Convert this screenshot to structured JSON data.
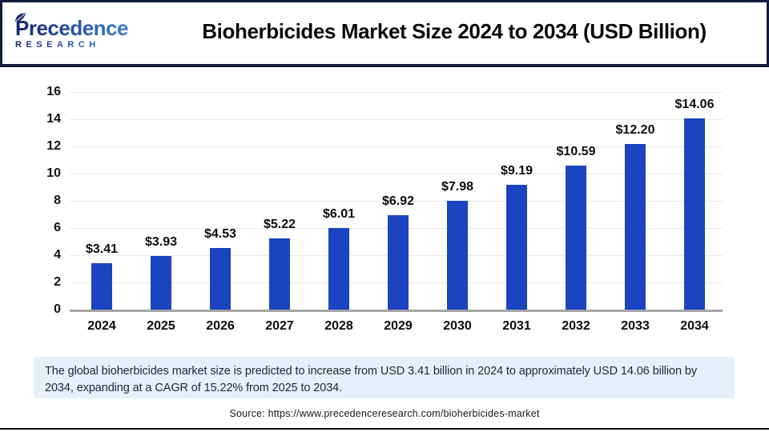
{
  "header": {
    "logo_name": "Precedence",
    "logo_subname": "RESEARCH",
    "title": "Bioherbicides Market Size 2024 to 2034 (USD Billion)"
  },
  "chart_data": {
    "type": "bar",
    "title": "Bioherbicides Market Size 2024 to 2034 (USD Billion)",
    "unit": "USD Billion",
    "categories": [
      "2024",
      "2025",
      "2026",
      "2027",
      "2028",
      "2029",
      "2030",
      "2031",
      "2032",
      "2033",
      "2034"
    ],
    "values": [
      3.41,
      3.93,
      4.53,
      5.22,
      6.01,
      6.92,
      7.98,
      9.19,
      10.59,
      12.2,
      14.06
    ],
    "data_labels": [
      "$3.41",
      "$3.93",
      "$4.53",
      "$5.22",
      "$6.01",
      "$6.92",
      "$7.98",
      "$9.19",
      "$10.59",
      "$12.20",
      "$14.06"
    ],
    "xlabel": "",
    "ylabel": "",
    "ylim": [
      0,
      16
    ],
    "ytick_step": 2,
    "grid": true,
    "legend": false,
    "bar_color": "#1b44c1"
  },
  "summary": {
    "text": "The global bioherbicides market size is predicted to increase from USD 3.41 billion in 2024 to approximately USD 14.06 billion by 2034, expanding at a CAGR of 15.22% from 2025 to 2034."
  },
  "source": {
    "text": "Source: https://www.precedenceresearch.com/bioherbicides-market"
  },
  "colors": {
    "bar": "#1b44c1",
    "header_border": "#101c40",
    "summary_background": "#e7f0fa",
    "gridline": "#e9e9e9",
    "axis_line": "#a6a6a6",
    "logo_navy": "#16246e",
    "logo_blue": "#4a90d9"
  }
}
